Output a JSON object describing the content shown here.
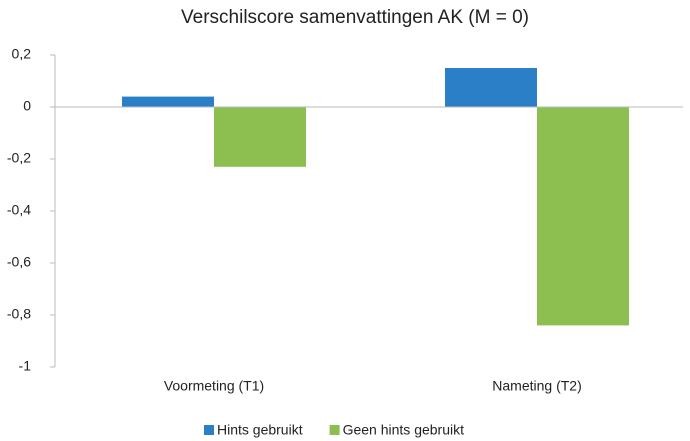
{
  "chart_data": {
    "type": "bar",
    "title": "Verschilscore samenvattingen AK (M = 0)",
    "categories": [
      "Voormeting (T1)",
      "Nameting (T2)"
    ],
    "series": [
      {
        "name": "Hints gebruikt",
        "color": "#2a7fc6",
        "values": [
          0.04,
          0.15
        ]
      },
      {
        "name": "Geen hints gebruikt",
        "color": "#8cbf4f",
        "values": [
          -0.23,
          -0.84
        ]
      }
    ],
    "ylim": [
      -1,
      0.2
    ],
    "yticks": [
      {
        "value": 0.2,
        "label": "0,2"
      },
      0,
      {
        "value": -0.2,
        "label": "-0,2"
      },
      {
        "value": -0.4,
        "label": "-0,4"
      },
      {
        "value": -0.6,
        "label": "-0,6"
      },
      {
        "value": -0.8,
        "label": "-0,8"
      },
      -1
    ],
    "grid": false,
    "legend": "bottom"
  }
}
